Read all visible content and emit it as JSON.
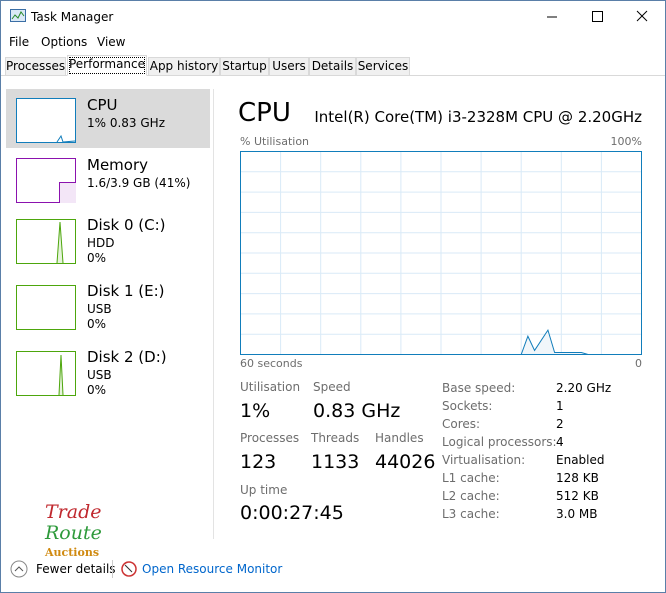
{
  "window": {
    "title": "Task Manager"
  },
  "menu": [
    "File",
    "Options",
    "View"
  ],
  "tabs": [
    "Processes",
    "Performance",
    "App history",
    "Startup",
    "Users",
    "Details",
    "Services"
  ],
  "sidebar": [
    {
      "name": "CPU",
      "line1": "1% 0.83 GHz"
    },
    {
      "name": "Memory",
      "line1": "1.6/3.9 GB (41%)"
    },
    {
      "name": "Disk 0 (C:)",
      "line1": "HDD",
      "line2": "0%"
    },
    {
      "name": "Disk 1 (E:)",
      "line1": "USB",
      "line2": "0%"
    },
    {
      "name": "Disk 2 (D:)",
      "line1": "USB",
      "line2": "0%"
    }
  ],
  "main": {
    "title": "CPU",
    "cpu_model": "Intel(R) Core(TM) i3-2328M CPU @ 2.20GHz",
    "y_label": "% Utilisation",
    "y_max_label": "100%",
    "x_left_label": "60 seconds",
    "x_right_label": "0",
    "graph": {
      "x": [
        60,
        18,
        17,
        16,
        14,
        13,
        9,
        8,
        0
      ],
      "values": [
        0,
        0,
        9,
        2,
        12,
        1,
        1,
        0,
        0
      ],
      "xlim": [
        60,
        0
      ],
      "ylim": [
        0,
        100
      ]
    },
    "stats": [
      {
        "label": "Utilisation",
        "value": "1%"
      },
      {
        "label": "Speed",
        "value": "0.83 GHz"
      },
      {
        "label": "Processes",
        "value": "123"
      },
      {
        "label": "Threads",
        "value": "1133"
      },
      {
        "label": "Handles",
        "value": "44026"
      },
      {
        "label": "Up time",
        "value": "0:00:27:45"
      }
    ],
    "details": [
      [
        "Base speed:",
        "2.20 GHz"
      ],
      [
        "Sockets:",
        "1"
      ],
      [
        "Cores:",
        "2"
      ],
      [
        "Logical processors:",
        "4"
      ],
      [
        "Virtualisation:",
        "Enabled"
      ],
      [
        "L1 cache:",
        "128 KB"
      ],
      [
        "L2 cache:",
        "512 KB"
      ],
      [
        "L3 cache:",
        "3.0 MB"
      ]
    ]
  },
  "logo": [
    "Trade",
    "Route",
    "Auctions"
  ],
  "footer": {
    "fewer_details": "Fewer details",
    "open_resource_monitor": "Open Resource Monitor"
  }
}
